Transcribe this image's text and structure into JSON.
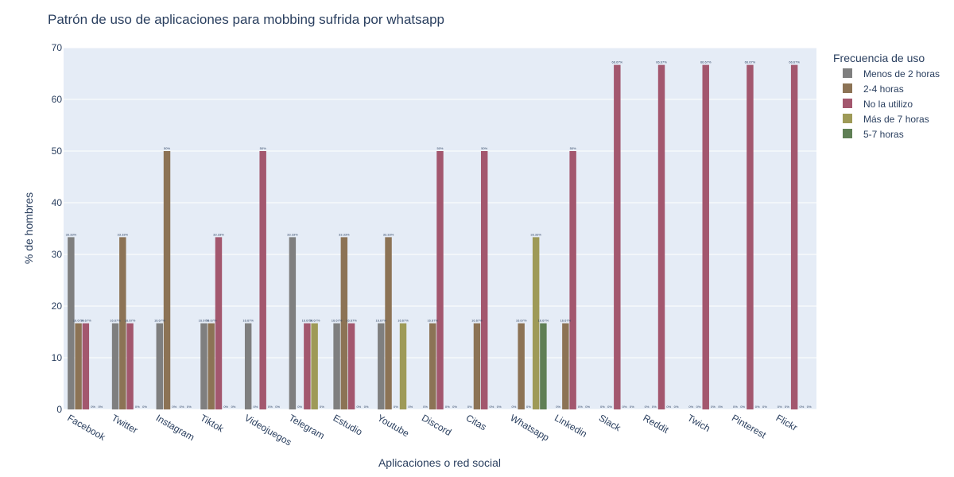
{
  "chart_data": {
    "type": "bar",
    "title": "Patrón de uso de aplicaciones para mobbing sufrida por whatsapp",
    "xlabel": "Aplicaciones o red social",
    "ylabel": "% de hombres",
    "ylim": [
      0,
      70
    ],
    "yticks": [
      "0",
      "10",
      "20",
      "30",
      "40",
      "50",
      "60",
      "70"
    ],
    "grid": true,
    "legend": {
      "title": "Frecuencia de uso",
      "position": "right"
    },
    "categories": [
      "Facebook",
      "Twitter",
      "Instagram",
      "Tiktok",
      "Videojuegos",
      "Telegram",
      "Estudio",
      "Youtube",
      "Discord",
      "Citas",
      "Whatsapp",
      "Linkedin",
      "Slack",
      "Reddit",
      "Twich",
      "Pinterest",
      "Flickr"
    ],
    "series": [
      {
        "name": "Menos de 2 horas",
        "color": "#7f7f7f",
        "values": [
          33.33,
          16.67,
          16.67,
          16.67,
          16.67,
          33.33,
          16.67,
          16.67,
          0,
          0,
          0,
          0,
          0,
          0,
          0,
          0,
          0
        ]
      },
      {
        "name": "2-4 horas",
        "color": "#8c7355",
        "values": [
          16.67,
          33.33,
          50,
          16.67,
          0,
          0,
          33.33,
          33.33,
          16.67,
          16.67,
          16.67,
          16.67,
          0,
          0,
          0,
          0,
          0
        ]
      },
      {
        "name": "No la utilizo",
        "color": "#a3576e",
        "values": [
          16.67,
          16.67,
          0,
          33.33,
          50,
          16.67,
          16.67,
          0,
          50,
          50,
          0,
          50,
          66.67,
          66.67,
          66.67,
          66.67,
          66.67
        ]
      },
      {
        "name": "Más de 7 horas",
        "color": "#9e9a57",
        "values": [
          0,
          0,
          0,
          0,
          0,
          16.67,
          0,
          16.67,
          0,
          0,
          33.33,
          0,
          0,
          0,
          0,
          0,
          0
        ]
      },
      {
        "name": "5-7 horas",
        "color": "#5f7f55",
        "values": [
          0,
          0,
          0,
          0,
          0,
          0,
          0,
          0,
          0,
          0,
          16.67,
          0,
          0,
          0,
          0,
          0,
          0
        ]
      }
    ],
    "colors": {
      "plot_background": "#e5ecf6",
      "grid": "#ffffff",
      "text": "#2a3f5f"
    }
  }
}
